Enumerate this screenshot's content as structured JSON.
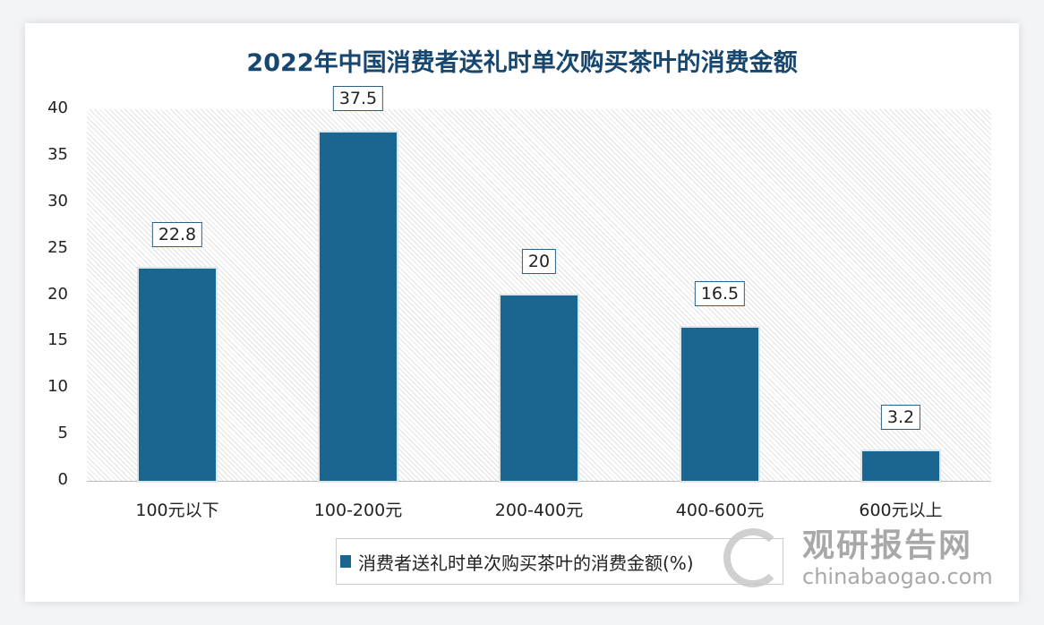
{
  "chart_data": {
    "type": "bar",
    "title": "2022年中国消费者送礼时单次购买茶叶的消费金额",
    "categories": [
      "100元以下",
      "100-200元",
      "200-400元",
      "400-600元",
      "600元以上"
    ],
    "series": [
      {
        "name": "消费者送礼时单次购买茶叶的消费金额(%)",
        "values": [
          22.8,
          37.5,
          20,
          16.5,
          3.2
        ]
      }
    ],
    "data_labels": [
      "22.8",
      "37.5",
      "20",
      "16.5",
      "3.2"
    ],
    "yticks": [
      "0",
      "5",
      "10",
      "15",
      "20",
      "25",
      "30",
      "35",
      "40"
    ],
    "ylim": [
      0,
      40
    ],
    "grid": false,
    "legend": "bottom",
    "color": "#1a6690"
  },
  "watermark": {
    "name": "观研报告网",
    "url": "chinabaogao.com"
  }
}
